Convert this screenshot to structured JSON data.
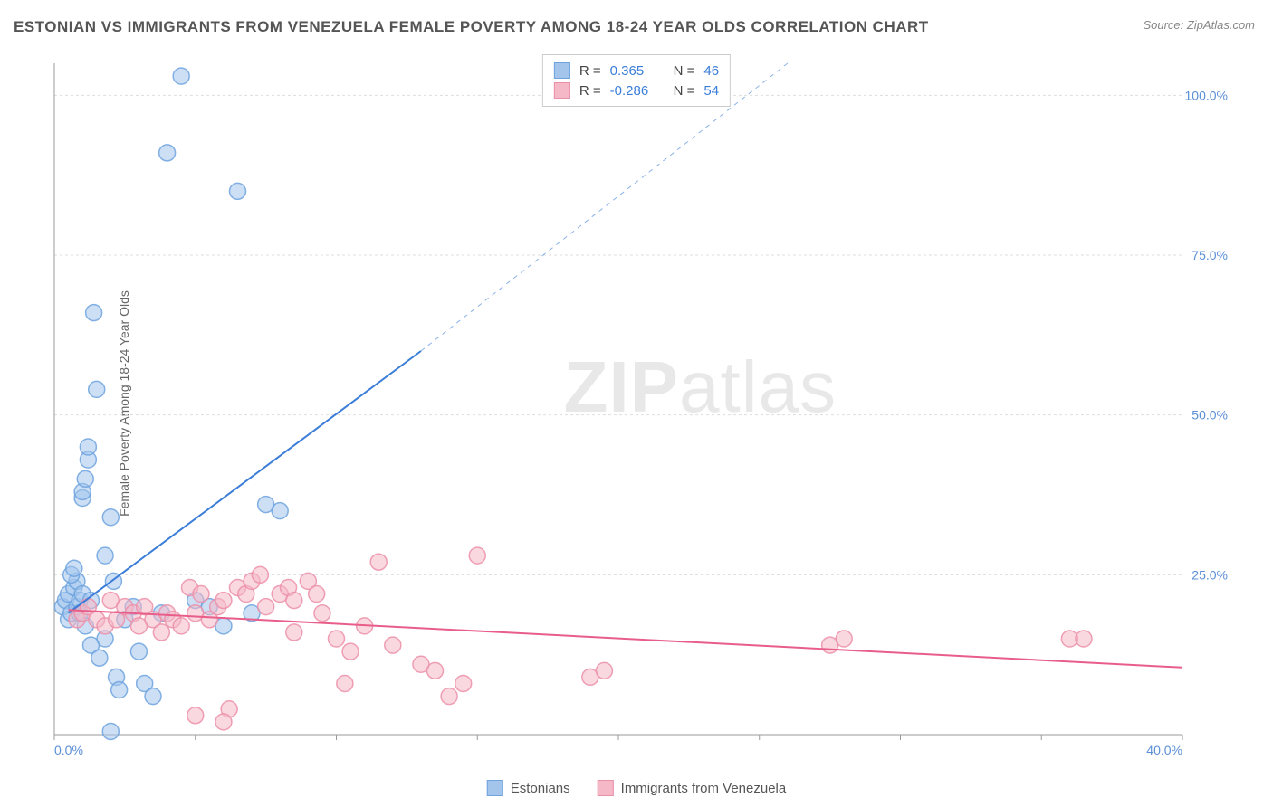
{
  "title": "ESTONIAN VS IMMIGRANTS FROM VENEZUELA FEMALE POVERTY AMONG 18-24 YEAR OLDS CORRELATION CHART",
  "source": "Source: ZipAtlas.com",
  "y_axis_label": "Female Poverty Among 18-24 Year Olds",
  "watermark_bold": "ZIP",
  "watermark_light": "atlas",
  "chart": {
    "type": "scatter",
    "background_color": "#ffffff",
    "grid_color": "#dddddd",
    "axis_color": "#999999",
    "xlim": [
      0,
      40
    ],
    "ylim": [
      0,
      105
    ],
    "x_ticks": [
      0,
      5,
      10,
      15,
      20,
      25,
      30,
      35,
      40
    ],
    "x_tick_labels": [
      "0.0%",
      "",
      "",
      "",
      "",
      "",
      "",
      "",
      "40.0%"
    ],
    "y_ticks": [
      25,
      50,
      75,
      100
    ],
    "y_tick_labels": [
      "25.0%",
      "50.0%",
      "75.0%",
      "100.0%"
    ],
    "marker_radius": 9,
    "marker_opacity": 0.55,
    "marker_stroke_opacity": 0.85,
    "series": [
      {
        "name": "Estonians",
        "color_fill": "#a3c5ec",
        "color_stroke": "#6fa3de",
        "R": "0.365",
        "N": "46",
        "trend_line": {
          "x1": 0.5,
          "y1": 19,
          "x2": 13,
          "y2": 60,
          "dashed_ext_x2": 26,
          "dashed_ext_y2": 105,
          "color": "#3b7dd8",
          "width": 2
        },
        "points": [
          [
            0.3,
            20
          ],
          [
            0.4,
            21
          ],
          [
            0.5,
            22
          ],
          [
            0.5,
            18
          ],
          [
            0.6,
            19
          ],
          [
            0.7,
            23
          ],
          [
            0.8,
            20
          ],
          [
            0.8,
            24
          ],
          [
            0.9,
            21
          ],
          [
            1.0,
            22
          ],
          [
            1.0,
            37
          ],
          [
            1.0,
            38
          ],
          [
            1.1,
            17
          ],
          [
            1.1,
            40
          ],
          [
            1.2,
            43
          ],
          [
            1.2,
            45
          ],
          [
            1.3,
            14
          ],
          [
            1.4,
            66
          ],
          [
            1.5,
            54
          ],
          [
            1.6,
            12
          ],
          [
            1.8,
            28
          ],
          [
            1.8,
            15
          ],
          [
            2.0,
            34
          ],
          [
            2.0,
            0.5
          ],
          [
            2.1,
            24
          ],
          [
            2.2,
            9
          ],
          [
            2.3,
            7
          ],
          [
            2.5,
            18
          ],
          [
            2.8,
            20
          ],
          [
            3.0,
            13
          ],
          [
            3.2,
            8
          ],
          [
            3.5,
            6
          ],
          [
            3.8,
            19
          ],
          [
            4.0,
            91
          ],
          [
            4.5,
            103
          ],
          [
            5.0,
            21
          ],
          [
            5.5,
            20
          ],
          [
            6.0,
            17
          ],
          [
            6.5,
            85
          ],
          [
            7.0,
            19
          ],
          [
            7.5,
            36
          ],
          [
            8.0,
            35
          ],
          [
            0.6,
            25
          ],
          [
            0.7,
            26
          ],
          [
            0.9,
            19
          ],
          [
            1.3,
            21
          ]
        ]
      },
      {
        "name": "Immigrants from Venezuela",
        "color_fill": "#f4b8c6",
        "color_stroke": "#ec8fa8",
        "R": "-0.286",
        "N": "54",
        "trend_line": {
          "x1": 0.5,
          "y1": 19.5,
          "x2": 40,
          "y2": 10.5,
          "color": "#e85d8a",
          "width": 2
        },
        "points": [
          [
            0.8,
            18
          ],
          [
            1.0,
            19
          ],
          [
            1.2,
            20
          ],
          [
            1.5,
            18
          ],
          [
            1.8,
            17
          ],
          [
            2.0,
            21
          ],
          [
            2.2,
            18
          ],
          [
            2.5,
            20
          ],
          [
            2.8,
            19
          ],
          [
            3.0,
            17
          ],
          [
            3.2,
            20
          ],
          [
            3.5,
            18
          ],
          [
            3.8,
            16
          ],
          [
            4.0,
            19
          ],
          [
            4.2,
            18
          ],
          [
            4.5,
            17
          ],
          [
            4.8,
            23
          ],
          [
            5.0,
            19
          ],
          [
            5.2,
            22
          ],
          [
            5.5,
            18
          ],
          [
            5.8,
            20
          ],
          [
            6.0,
            21
          ],
          [
            6.2,
            4
          ],
          [
            6.5,
            23
          ],
          [
            6.8,
            22
          ],
          [
            7.0,
            24
          ],
          [
            7.3,
            25
          ],
          [
            7.5,
            20
          ],
          [
            8.0,
            22
          ],
          [
            8.3,
            23
          ],
          [
            8.5,
            21
          ],
          [
            9.0,
            24
          ],
          [
            9.3,
            22
          ],
          [
            9.5,
            19
          ],
          [
            10.0,
            15
          ],
          [
            10.3,
            8
          ],
          [
            10.5,
            13
          ],
          [
            11.0,
            17
          ],
          [
            11.5,
            27
          ],
          [
            12.0,
            14
          ],
          [
            13.0,
            11
          ],
          [
            13.5,
            10
          ],
          [
            14.0,
            6
          ],
          [
            14.5,
            8
          ],
          [
            15.0,
            28
          ],
          [
            19.0,
            9
          ],
          [
            19.5,
            10
          ],
          [
            27.5,
            14
          ],
          [
            28.0,
            15
          ],
          [
            36.0,
            15
          ],
          [
            36.5,
            15
          ],
          [
            5.0,
            3
          ],
          [
            6.0,
            2
          ],
          [
            8.5,
            16
          ]
        ]
      }
    ]
  },
  "legend_box": {
    "r_label": "R =",
    "n_label": "N ="
  },
  "bottom_legend": {
    "series1": "Estonians",
    "series2": "Immigrants from Venezuela"
  }
}
